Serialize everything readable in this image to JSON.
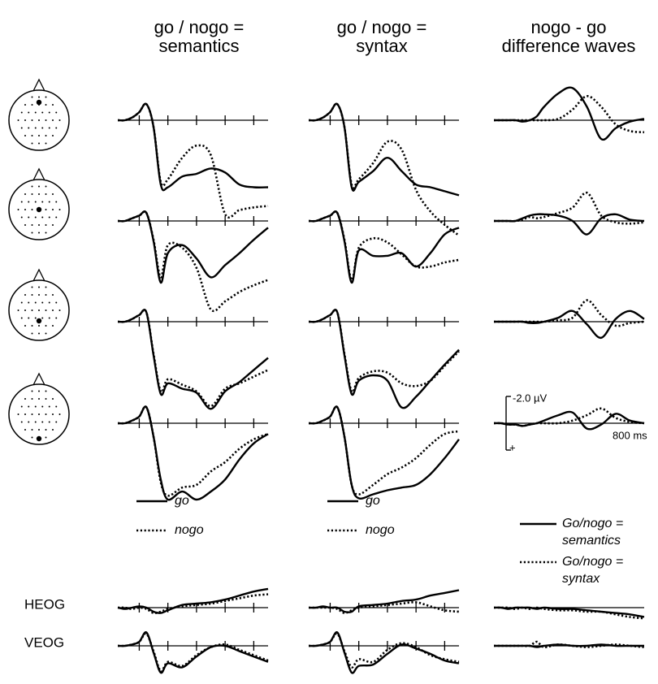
{
  "row_labels": [
    null,
    null,
    null,
    null,
    "HEOG",
    "VEOG"
  ],
  "chart_data": [
    {
      "type": "line",
      "title": [
        "go / nogo =",
        "semantics"
      ],
      "x": [
        -150,
        -100,
        -50,
        0,
        50,
        100,
        150,
        200,
        300,
        400,
        500,
        600,
        700,
        800,
        900
      ],
      "xlim": [
        -150,
        900
      ],
      "xticks": [
        0,
        200,
        400,
        600,
        800
      ],
      "series": [
        {
          "name": "go",
          "color": "#000000",
          "dash": "solid",
          "values": [
            [
              0,
              0,
              -0.2,
              -0.6,
              -1.2,
              0.5,
              4.8,
              5.0,
              4.2,
              4.0,
              3.6,
              3.9,
              4.8,
              5.0,
              5.0
            ],
            [
              0,
              0,
              -0.2,
              -0.4,
              -0.6,
              1.5,
              4.6,
              2.4,
              1.8,
              2.8,
              4.2,
              3.3,
              2.4,
              1.4,
              0.5
            ],
            [
              0,
              0,
              -0.2,
              -0.5,
              -0.7,
              2.5,
              5.4,
              4.6,
              5.0,
              5.3,
              6.5,
              5.2,
              4.5,
              3.6,
              2.7
            ],
            [
              0,
              0,
              -0.2,
              -0.5,
              -1.2,
              1.0,
              4.2,
              5.7,
              5.1,
              5.7,
              5.1,
              4.2,
              2.7,
              1.5,
              0.8
            ],
            [
              0,
              0.1,
              0,
              -0.1,
              0,
              0.3,
              0.4,
              0.2,
              -0.2,
              -0.3,
              -0.4,
              -0.6,
              -0.9,
              -1.2,
              -1.4
            ],
            [
              0,
              0,
              -0.1,
              -0.3,
              -1.0,
              0.5,
              2.0,
              1.3,
              1.6,
              0.8,
              0.1,
              0,
              0.4,
              0.8,
              1.2
            ]
          ]
        },
        {
          "name": "nogo",
          "color": "#000000",
          "dash": "dotted",
          "values": [
            [
              0,
              0,
              -0.2,
              -0.6,
              -1.2,
              0.5,
              4.6,
              4.4,
              2.8,
              1.9,
              2.6,
              7.0,
              6.7,
              6.5,
              6.4
            ],
            [
              0,
              0,
              -0.2,
              -0.4,
              -0.6,
              1.4,
              4.2,
              1.8,
              2.0,
              3.5,
              6.6,
              6.0,
              5.3,
              4.8,
              4.4
            ],
            [
              0,
              0,
              -0.2,
              -0.5,
              -0.7,
              2.4,
              5.2,
              4.3,
              4.7,
              5.2,
              6.3,
              5.0,
              4.6,
              4.1,
              3.6
            ],
            [
              0,
              0,
              -0.2,
              -0.5,
              -1.2,
              1.0,
              4.4,
              5.4,
              4.8,
              4.6,
              3.6,
              2.9,
              1.9,
              1.2,
              0.8
            ],
            [
              0,
              0,
              0.1,
              0,
              0.1,
              0.4,
              0.3,
              0.1,
              -0.1,
              -0.2,
              -0.3,
              -0.5,
              -0.7,
              -0.9,
              -1.0
            ],
            [
              0,
              0,
              -0.1,
              -0.3,
              -0.9,
              0.4,
              1.9,
              1.2,
              1.5,
              0.7,
              0.1,
              -0.1,
              0.3,
              0.7,
              1.1
            ]
          ]
        }
      ]
    },
    {
      "type": "line",
      "title": [
        "go / nogo =",
        "syntax"
      ],
      "x": [
        -150,
        -100,
        -50,
        0,
        50,
        100,
        150,
        200,
        300,
        400,
        500,
        600,
        700,
        800,
        900
      ],
      "xlim": [
        -150,
        900
      ],
      "xticks": [
        0,
        200,
        400,
        600,
        800
      ],
      "series": [
        {
          "name": "go",
          "color": "#000000",
          "dash": "solid",
          "values": [
            [
              0,
              0,
              -0.2,
              -0.6,
              -1.2,
              0.5,
              5.0,
              4.6,
              3.8,
              2.8,
              3.8,
              4.8,
              5.0,
              5.3,
              5.6
            ],
            [
              0,
              0,
              -0.2,
              -0.4,
              -0.6,
              1.5,
              4.6,
              2.2,
              2.6,
              2.6,
              2.4,
              3.4,
              2.4,
              1.0,
              0.5
            ],
            [
              0,
              0,
              -0.2,
              -0.5,
              -0.7,
              2.5,
              5.4,
              4.4,
              4.0,
              4.4,
              6.4,
              5.6,
              4.4,
              3.2,
              2.1
            ],
            [
              0,
              0,
              -0.2,
              -0.5,
              -1.2,
              1.0,
              4.6,
              5.6,
              5.3,
              5.0,
              4.8,
              4.6,
              3.8,
              2.6,
              1.2
            ],
            [
              0,
              0,
              -0.1,
              0,
              0,
              0.3,
              0.3,
              -0.1,
              -0.2,
              -0.3,
              -0.5,
              -0.6,
              -0.9,
              -1.1,
              -1.3
            ],
            [
              0,
              0,
              -0.1,
              -0.3,
              -1.0,
              0.5,
              2.0,
              1.5,
              1.4,
              0.6,
              -0.1,
              0.2,
              0.6,
              1.1,
              1.3
            ]
          ]
        },
        {
          "name": "nogo",
          "color": "#000000",
          "dash": "dotted",
          "values": [
            [
              0,
              0,
              -0.2,
              -0.6,
              -1.2,
              0.5,
              4.8,
              4.4,
              3.2,
              1.6,
              2.2,
              5.2,
              6.8,
              7.8,
              8.6
            ],
            [
              0,
              0,
              -0.2,
              -0.4,
              -0.6,
              1.4,
              4.4,
              2.0,
              1.3,
              1.6,
              2.5,
              3.4,
              3.4,
              3.1,
              2.9
            ],
            [
              0,
              0,
              -0.2,
              -0.5,
              -0.7,
              2.4,
              5.2,
              4.2,
              3.7,
              3.8,
              4.6,
              4.8,
              4.4,
              3.3,
              2.2
            ],
            [
              0,
              0,
              -0.2,
              -0.5,
              -1.2,
              1.0,
              4.6,
              5.3,
              4.6,
              3.8,
              3.3,
              2.6,
              1.6,
              0.8,
              0.6
            ],
            [
              0,
              0,
              0,
              0,
              0.1,
              0.4,
              0.2,
              0,
              -0.1,
              -0.2,
              -0.3,
              -0.4,
              -0.1,
              0.2,
              0.3
            ],
            [
              0,
              0,
              -0.1,
              -0.3,
              -0.9,
              0.4,
              1.6,
              1.0,
              1.2,
              0.3,
              -0.2,
              0.1,
              0.7,
              1.0,
              1.2
            ]
          ]
        }
      ]
    },
    {
      "type": "line",
      "title": [
        "nogo - go",
        "difference waves"
      ],
      "x": [
        -150,
        -100,
        -50,
        0,
        50,
        100,
        150,
        200,
        300,
        400,
        500,
        600,
        700,
        800,
        900
      ],
      "xlim": [
        -150,
        900
      ],
      "annotations": [
        {
          "text": "800 ms",
          "x": 800
        }
      ],
      "scale_bar": {
        "range": [
          -2.0,
          2.0
        ],
        "top_label": "-2.0 µV",
        "bottom_label": "+"
      },
      "series": [
        {
          "name": [
            "Go/nogo =",
            "semantics"
          ],
          "color": "#000000",
          "dash": "solid",
          "values": [
            [
              0,
              0,
              0,
              0,
              0.1,
              0,
              -0.3,
              -1.0,
              -2.0,
              -2.4,
              -1.0,
              1.4,
              0.6,
              0.1,
              -0.1
            ],
            [
              0,
              0,
              0,
              0,
              -0.2,
              -0.4,
              -0.5,
              -0.5,
              -0.4,
              0,
              1.0,
              -0.2,
              -0.5,
              -0.1,
              0
            ],
            [
              0,
              0,
              0,
              0,
              0,
              0.1,
              0.1,
              0,
              -0.3,
              -0.8,
              0.2,
              1.2,
              -0.2,
              -0.8,
              -0.2
            ],
            [
              0,
              0,
              0.1,
              0.1,
              0.2,
              0.1,
              0,
              -0.2,
              -0.6,
              -0.8,
              0.4,
              0.1,
              -0.7,
              -0.2,
              0
            ],
            [
              0,
              0,
              0.1,
              0,
              0,
              0,
              0.1,
              0,
              0.1,
              0.1,
              0.2,
              0.3,
              0.4,
              0.5,
              0.7
            ],
            [
              0,
              0,
              0,
              0,
              0,
              0,
              0.1,
              0,
              -0.1,
              0,
              0,
              -0.1,
              0,
              0,
              0
            ]
          ]
        },
        {
          "name": [
            "Go/nogo =",
            "syntax"
          ],
          "color": "#000000",
          "dash": "dotted",
          "values": [
            [
              0,
              0,
              0,
              0,
              0,
              0,
              0,
              0,
              -0.1,
              -0.8,
              -1.8,
              -1.0,
              0.3,
              0.8,
              0.9
            ],
            [
              0,
              0,
              0,
              0,
              -0.1,
              -0.3,
              -0.2,
              -0.3,
              -0.6,
              -1.0,
              -2.1,
              -0.4,
              0.1,
              0.2,
              0.1
            ],
            [
              0,
              0,
              0,
              0,
              0,
              0,
              0,
              0,
              -0.1,
              -0.3,
              -1.6,
              -0.5,
              0.3,
              0.1,
              0
            ],
            [
              0,
              0,
              0.1,
              0.1,
              0.2,
              0.1,
              0,
              0,
              0,
              -0.2,
              -0.6,
              -1.1,
              -0.4,
              -0.1,
              0
            ],
            [
              0,
              0,
              0,
              0.1,
              0,
              0.1,
              0,
              0.1,
              0.2,
              0.2,
              0.3,
              0.3,
              0.5,
              0.7,
              0.8
            ],
            [
              0,
              0,
              0,
              0,
              0,
              0,
              -0.3,
              0.1,
              -0.1,
              0,
              0.1,
              0,
              -0.1,
              0,
              0.1
            ]
          ]
        }
      ]
    }
  ]
}
